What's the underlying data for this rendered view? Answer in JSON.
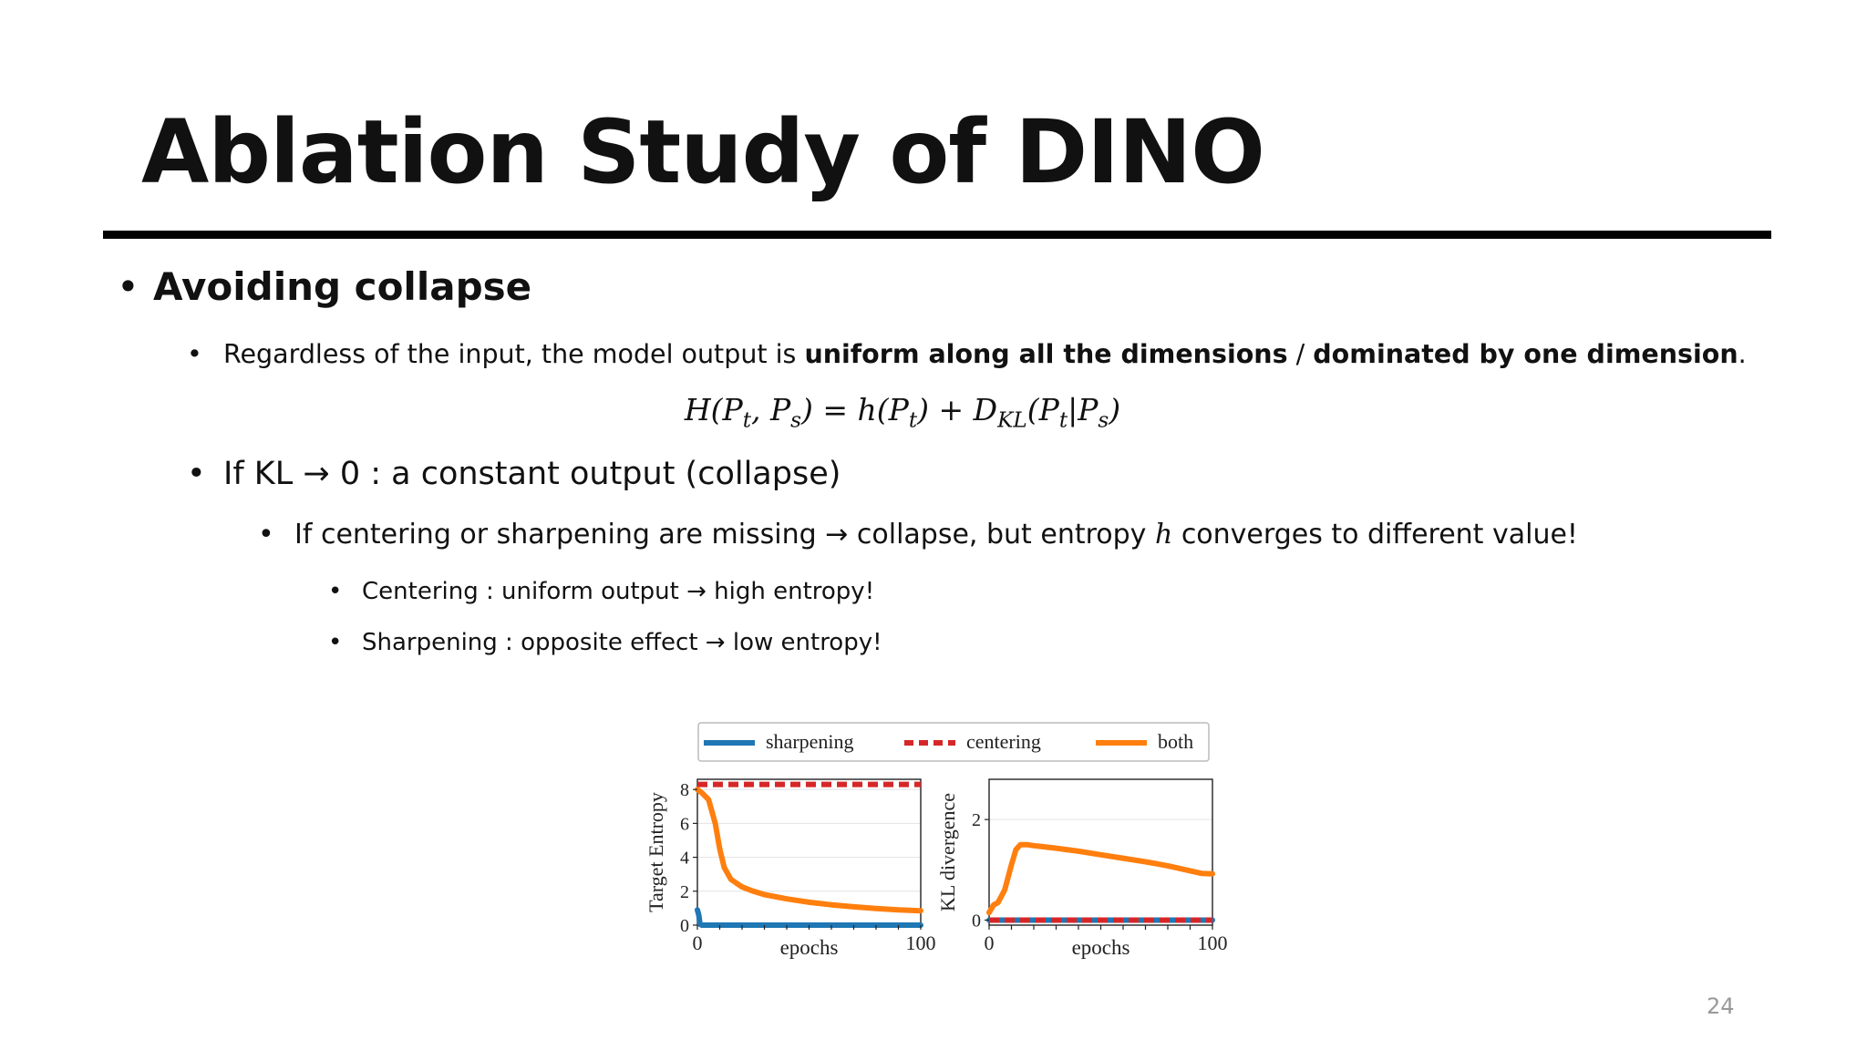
{
  "slide": {
    "title": "Ablation Study of DINO",
    "page_number": "24"
  },
  "bullets": {
    "b1": {
      "marker": "•",
      "text": "Avoiding collapse"
    },
    "b2": {
      "marker": "•",
      "pre": "Regardless of the input, the model output is ",
      "bold1": "uniform along all the dimensions",
      "mid": " / ",
      "bold2": "dominated by one dimension",
      "post": "."
    },
    "formula": "H(Pt, Ps) = h(Pt) + DKL(Pt|Ps)",
    "b3": {
      "marker": "•",
      "pre": "If KL ",
      "arrow": "→",
      "post": " 0 : a constant output (collapse)"
    },
    "b4": {
      "marker": "•",
      "pre": "If centering or sharpening are missing ",
      "arrow": "→",
      "mid": " collapse, but entropy ",
      "var": "h",
      "post": " converges to different value!"
    },
    "b5": {
      "marker": "•",
      "pre": "Centering : uniform output ",
      "arrow": "→",
      "post": " high entropy!"
    },
    "b6": {
      "marker": "•",
      "pre": "Sharpening : opposite effect ",
      "arrow": "→",
      "post": " low entropy!"
    }
  },
  "legend": {
    "items": [
      {
        "label": "sharpening",
        "color": "#1f77b4",
        "style": "solid"
      },
      {
        "label": "centering",
        "color": "#d62728",
        "style": "dashed"
      },
      {
        "label": "both",
        "color": "#ff7f0e",
        "style": "solid"
      }
    ]
  },
  "chart_data": [
    {
      "type": "line",
      "ylabel": "Target Entropy",
      "xlabel": "epochs",
      "xlim": [
        0,
        100
      ],
      "ylim": [
        0,
        8.6
      ],
      "yticks": [
        "0",
        "2",
        "4",
        "6",
        "8"
      ],
      "xticks": [
        "0",
        "100"
      ],
      "grid": true,
      "series": [
        {
          "name": "sharpening",
          "color": "#1f77b4",
          "dash": false,
          "x": [
            0,
            0.6,
            1.2,
            2,
            100
          ],
          "y": [
            0.9,
            0.6,
            0.05,
            0,
            0
          ]
        },
        {
          "name": "centering",
          "color": "#d62728",
          "dash": true,
          "x": [
            0,
            100
          ],
          "y": [
            8.3,
            8.3
          ]
        },
        {
          "name": "both",
          "color": "#ff7f0e",
          "dash": false,
          "x": [
            0,
            2,
            5,
            8,
            10,
            12,
            15,
            20,
            25,
            30,
            40,
            50,
            60,
            70,
            80,
            90,
            100
          ],
          "y": [
            8.0,
            7.8,
            7.4,
            6.0,
            4.5,
            3.4,
            2.7,
            2.25,
            2.0,
            1.8,
            1.55,
            1.35,
            1.2,
            1.08,
            0.98,
            0.9,
            0.85
          ]
        }
      ]
    },
    {
      "type": "line",
      "ylabel": "KL divergence",
      "xlabel": "epochs",
      "xlim": [
        0,
        100
      ],
      "ylim": [
        -0.1,
        2.8
      ],
      "yticks": [
        "0",
        "2"
      ],
      "xticks": [
        "0",
        "100"
      ],
      "grid": true,
      "series": [
        {
          "name": "sharpening",
          "color": "#1f77b4",
          "dash": false,
          "x": [
            0,
            100
          ],
          "y": [
            0,
            0
          ]
        },
        {
          "name": "centering",
          "color": "#d62728",
          "dash": true,
          "x": [
            0,
            100
          ],
          "y": [
            0,
            0
          ]
        },
        {
          "name": "both",
          "color": "#ff7f0e",
          "dash": false,
          "x": [
            0,
            2,
            4,
            7,
            10,
            12,
            14,
            17,
            20,
            30,
            40,
            50,
            60,
            70,
            80,
            90,
            95,
            100
          ],
          "y": [
            0.15,
            0.3,
            0.35,
            0.6,
            1.1,
            1.4,
            1.5,
            1.5,
            1.48,
            1.43,
            1.37,
            1.3,
            1.23,
            1.16,
            1.08,
            0.98,
            0.93,
            0.92
          ]
        }
      ]
    }
  ]
}
